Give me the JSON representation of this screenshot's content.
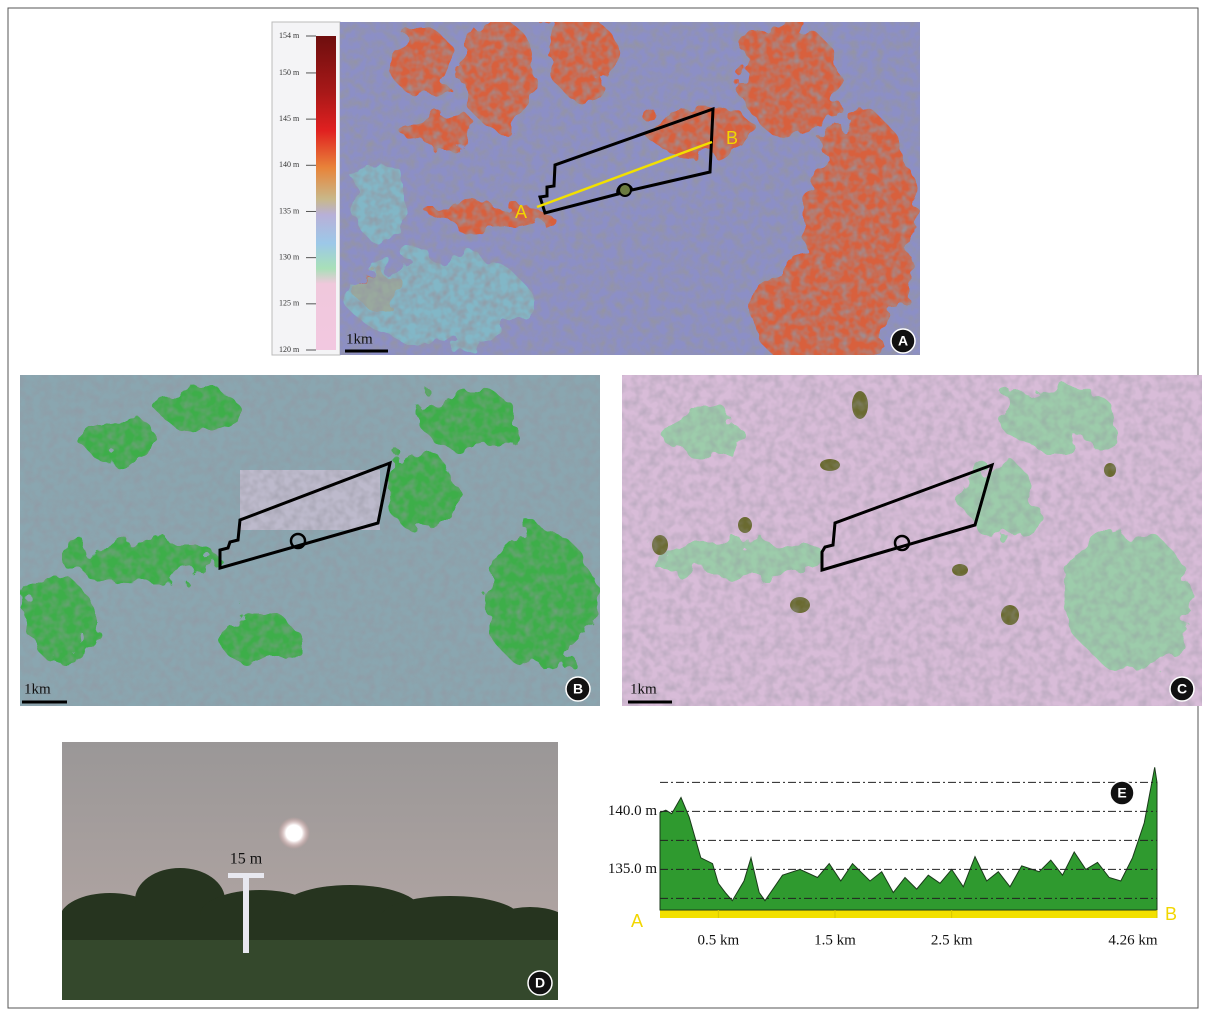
{
  "panels": {
    "a": {
      "badge": "A",
      "scale_bar": "1km",
      "profile_start": "A",
      "profile_end": "B",
      "colorbar": {
        "lim": [
          120,
          154
        ],
        "ticks": [
          {
            "value": 154,
            "label": "154 m"
          },
          {
            "value": 150,
            "label": "150 m"
          },
          {
            "value": 145,
            "label": "145 m"
          },
          {
            "value": 140,
            "label": "140 m"
          },
          {
            "value": 135,
            "label": "135 m"
          },
          {
            "value": 130,
            "label": "130 m"
          },
          {
            "value": 125,
            "label": "125 m"
          },
          {
            "value": 120,
            "label": "120 m"
          }
        ]
      }
    },
    "b": {
      "badge": "B",
      "scale_bar": "1km"
    },
    "c": {
      "badge": "C",
      "scale_bar": "1km"
    },
    "d": {
      "badge": "D",
      "height_label": "15 m"
    },
    "e": {
      "type": "area",
      "badge": "E",
      "start": "A",
      "end": "B",
      "color": "#2f9a2f",
      "xlim": [
        0,
        4.26
      ],
      "ylim": [
        131.5,
        144.5
      ],
      "xticks": [
        {
          "value": 0.5,
          "label": "0.5 km"
        },
        {
          "value": 1.5,
          "label": "1.5 km"
        },
        {
          "value": 2.5,
          "label": "2.5 km"
        },
        {
          "value": 4.26,
          "label": "4.26 km"
        }
      ],
      "yticks": [
        {
          "value": 135,
          "label": "135.0 m"
        },
        {
          "value": 140,
          "label": "140.0 m"
        }
      ],
      "grid_lines": [
        132.5,
        135,
        137.5,
        140,
        142.5
      ],
      "x": [
        0,
        0.05,
        0.1,
        0.18,
        0.25,
        0.35,
        0.45,
        0.5,
        0.56,
        0.62,
        0.72,
        0.78,
        0.85,
        0.9,
        1.05,
        1.2,
        1.35,
        1.45,
        1.55,
        1.65,
        1.8,
        1.9,
        2.0,
        2.1,
        2.2,
        2.3,
        2.4,
        2.5,
        2.6,
        2.7,
        2.8,
        2.9,
        3.0,
        3.1,
        3.25,
        3.35,
        3.45,
        3.55,
        3.65,
        3.75,
        3.85,
        3.95,
        4.05,
        4.15,
        4.24,
        4.26
      ],
      "values": [
        139.9,
        140.1,
        139.8,
        141.2,
        139.5,
        136.0,
        135.5,
        133.8,
        133.0,
        132.3,
        134.0,
        136.0,
        133.0,
        132.3,
        134.5,
        135.0,
        134.3,
        135.5,
        134.0,
        135.5,
        134.0,
        134.8,
        133.0,
        134.3,
        133.3,
        134.5,
        133.8,
        135.0,
        133.5,
        136.1,
        134.0,
        134.8,
        133.5,
        135.3,
        134.8,
        135.8,
        134.5,
        136.5,
        135.0,
        135.6,
        134.3,
        134.0,
        136.0,
        139.0,
        143.8,
        142.5
      ]
    }
  }
}
